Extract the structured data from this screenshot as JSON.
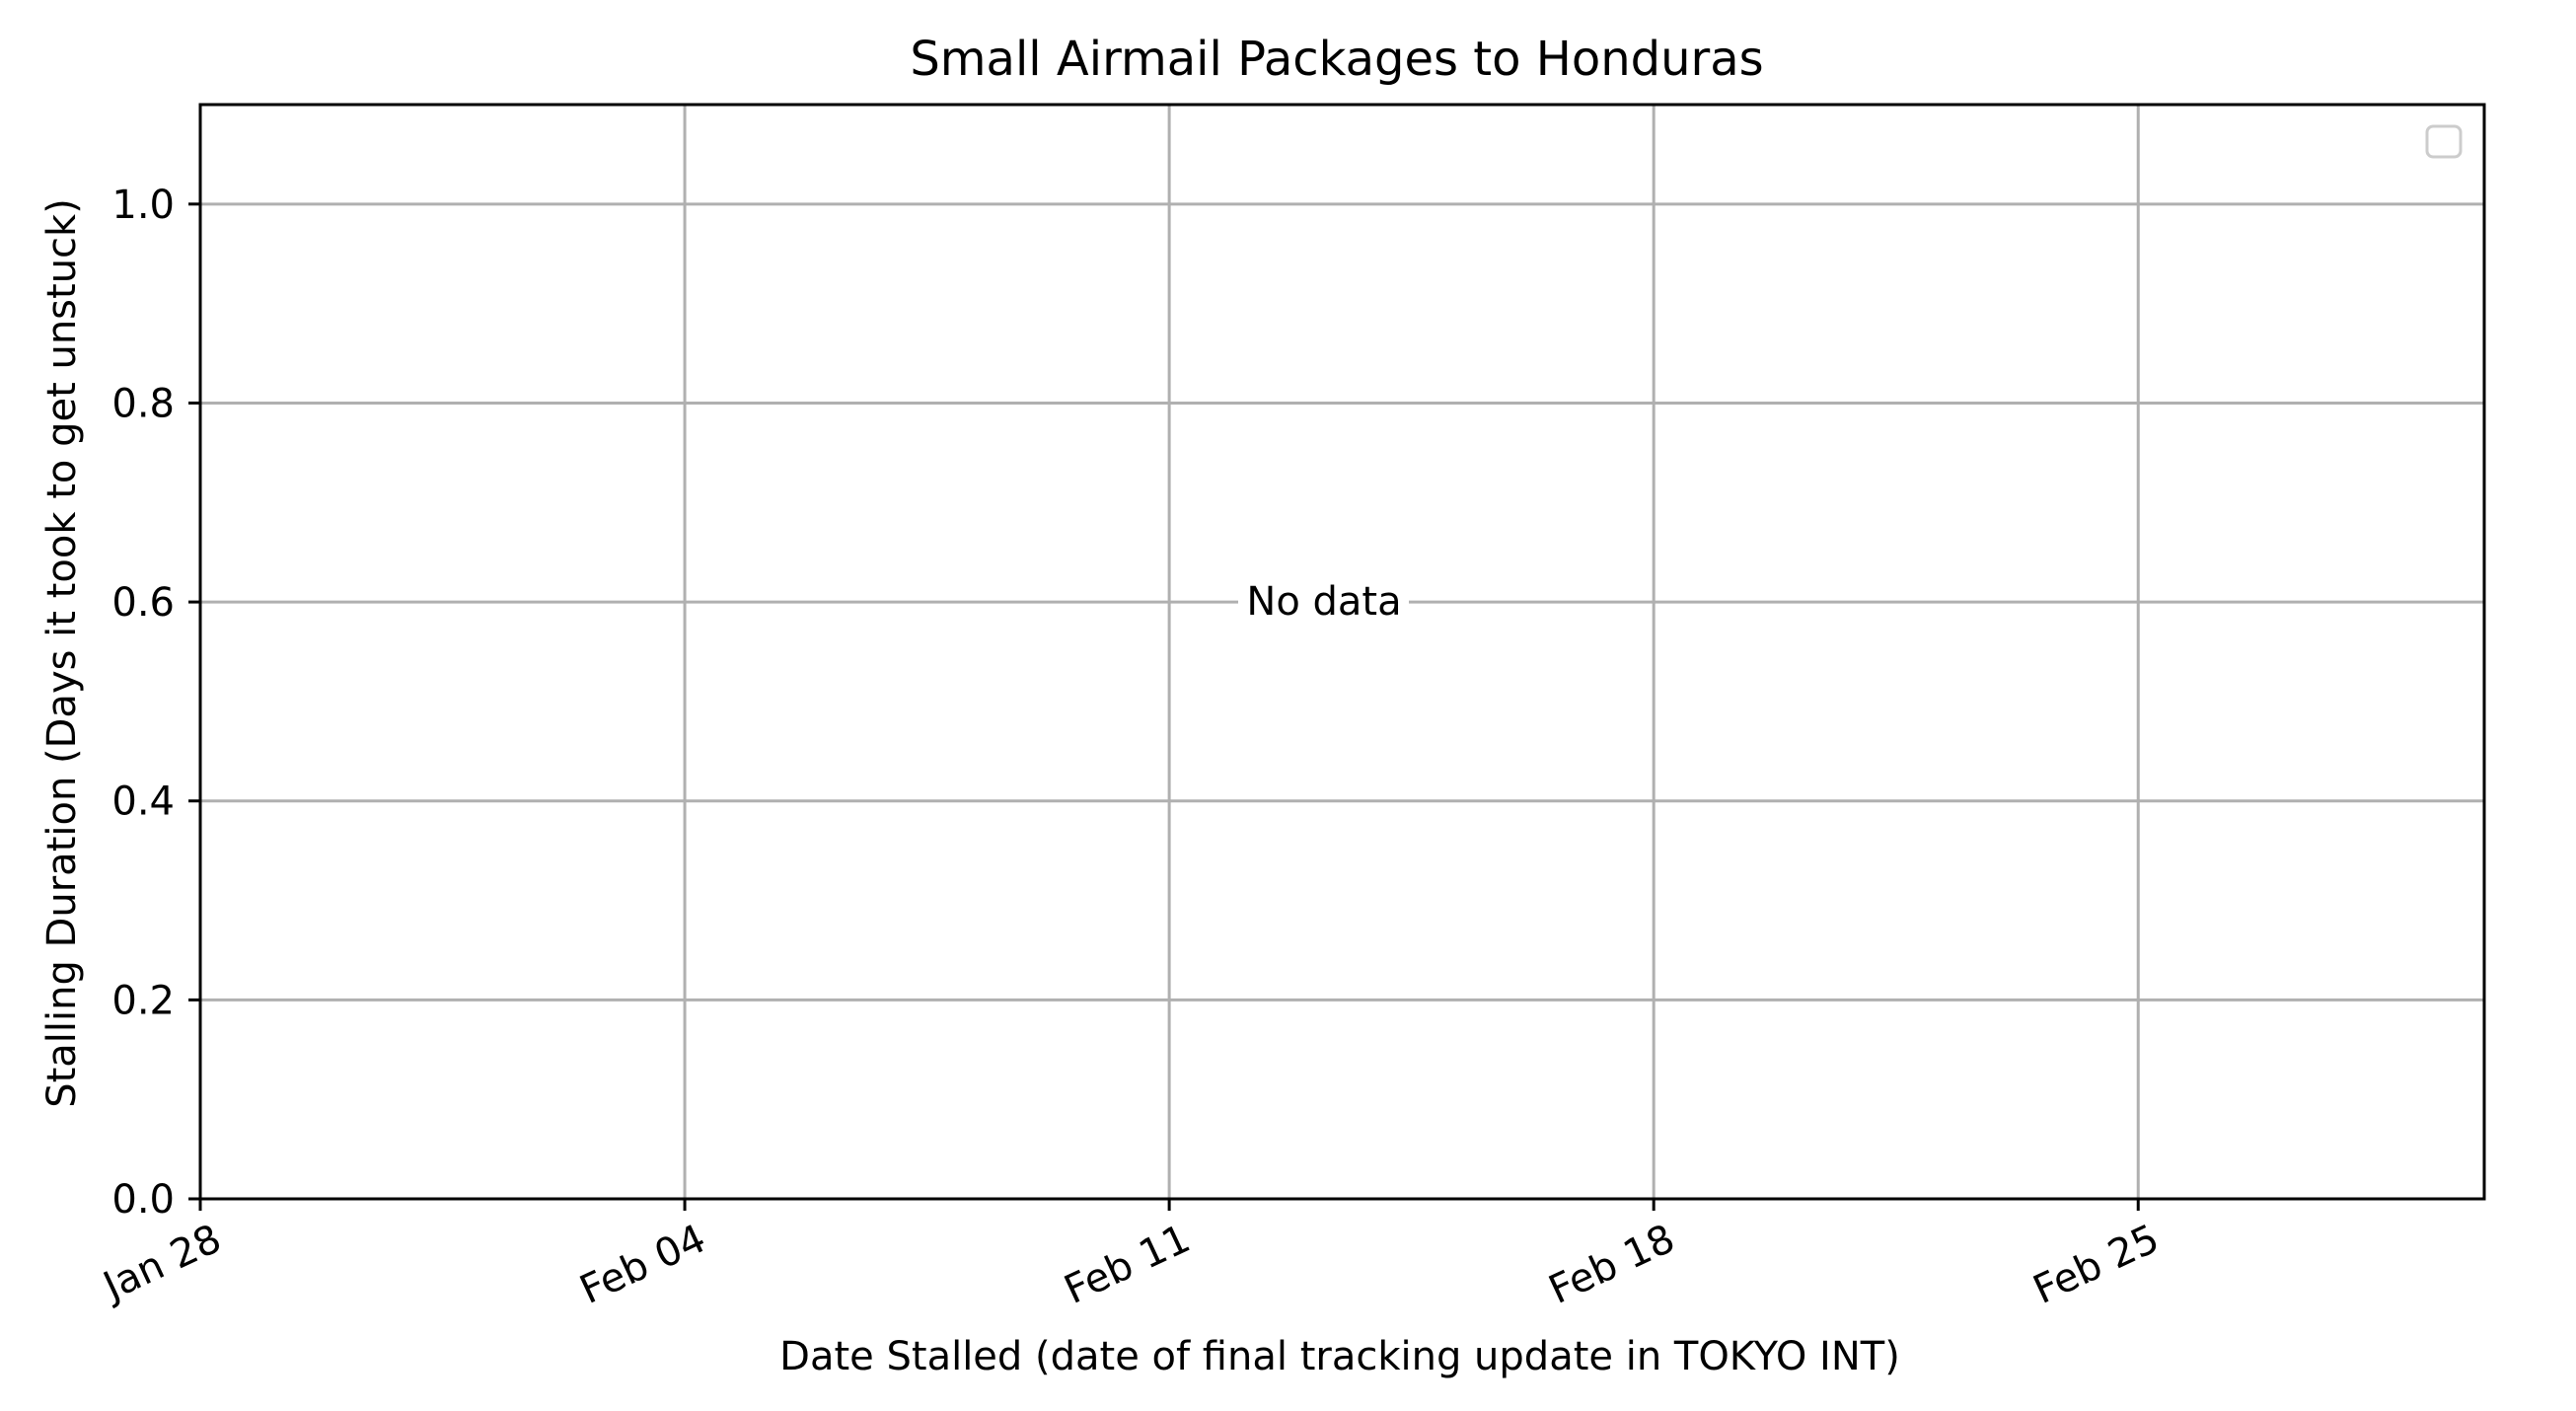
{
  "chart_data": {
    "type": "scatter",
    "title": "Small Airmail Packages to Honduras",
    "xlabel": "Date Stalled (date of final tracking update in TOKYO INT)",
    "ylabel": "Stalling Duration (Days it took to get unstuck)",
    "x_ticks": [
      "Jan 28",
      "Feb 04",
      "Feb 11",
      "Feb 18",
      "Feb 25"
    ],
    "y_ticks": [
      "0.0",
      "0.2",
      "0.4",
      "0.6",
      "0.8",
      "1.0"
    ],
    "ylim": [
      0,
      1.1
    ],
    "xlim": [
      "Jan 28",
      "Mar 01"
    ],
    "series": [],
    "annotation": "No data",
    "grid": true,
    "legend": "top-right (empty)"
  }
}
